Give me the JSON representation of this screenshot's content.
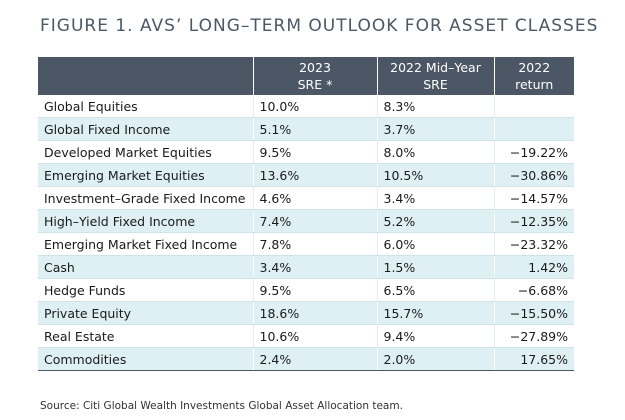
{
  "title": "FIGURE 1. AVS’ LONG–TERM OUTLOOK FOR ASSET CLASSES",
  "table": {
    "headers": {
      "name": "",
      "sre_2023_line1": "2023",
      "sre_2023_line2": "SRE *",
      "sre_2022_line1": "2022 Mid–Year",
      "sre_2022_line2": "SRE",
      "return_2022": "2022 return"
    },
    "rows": [
      {
        "name": "Global Equities",
        "sre_2023": "10.0%",
        "sre_2022": "8.3%",
        "return_2022": ""
      },
      {
        "name": "Global Fixed Income",
        "sre_2023": "5.1%",
        "sre_2022": "3.7%",
        "return_2022": ""
      },
      {
        "name": "Developed Market Equities",
        "sre_2023": "9.5%",
        "sre_2022": "8.0%",
        "return_2022": "−19.22%"
      },
      {
        "name": "Emerging Market Equities",
        "sre_2023": "13.6%",
        "sre_2022": "10.5%",
        "return_2022": "−30.86%"
      },
      {
        "name": "Investment–Grade Fixed Income",
        "sre_2023": "4.6%",
        "sre_2022": "3.4%",
        "return_2022": "−14.57%"
      },
      {
        "name": "High–Yield Fixed Income",
        "sre_2023": "7.4%",
        "sre_2022": "5.2%",
        "return_2022": "−12.35%"
      },
      {
        "name": "Emerging Market Fixed Income",
        "sre_2023": "7.8%",
        "sre_2022": "6.0%",
        "return_2022": "−23.32%"
      },
      {
        "name": "Cash",
        "sre_2023": "3.4%",
        "sre_2022": "1.5%",
        "return_2022": "1.42%"
      },
      {
        "name": "Hedge Funds",
        "sre_2023": "9.5%",
        "sre_2022": "6.5%",
        "return_2022": "−6.68%"
      },
      {
        "name": "Private Equity",
        "sre_2023": "18.6%",
        "sre_2022": "15.7%",
        "return_2022": "−15.50%"
      },
      {
        "name": "Real Estate",
        "sre_2023": "10.6%",
        "sre_2022": "9.4%",
        "return_2022": "−27.89%"
      },
      {
        "name": "Commodities",
        "sre_2023": "2.4%",
        "sre_2022": "2.0%",
        "return_2022": "17.65%"
      }
    ]
  },
  "source": "Source: Citi Global Wealth Investments Global Asset Allocation team.",
  "colors": {
    "header_bg": "#4b5765",
    "stripe_bg": "#dff0f5",
    "title_color": "#4a5866"
  }
}
